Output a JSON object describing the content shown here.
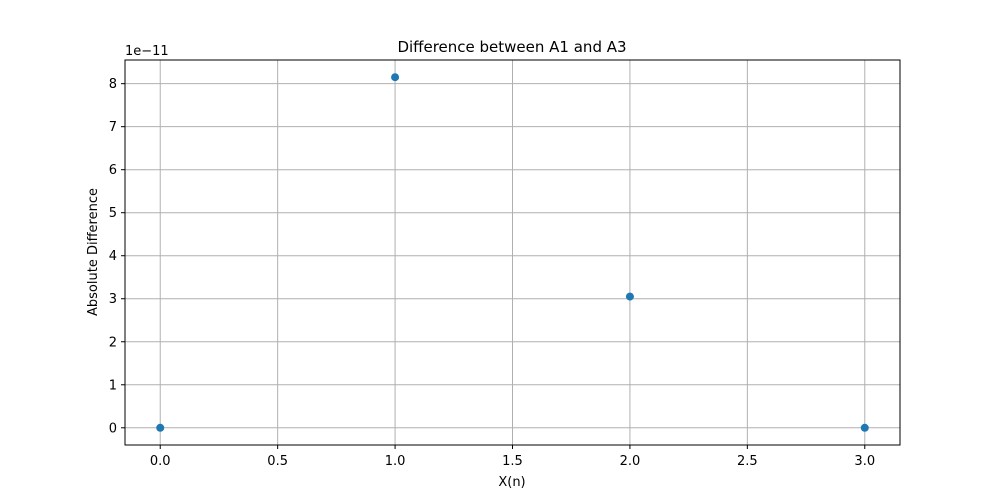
{
  "chart_data": {
    "type": "scatter",
    "title": "Difference between A1 and A3",
    "xlabel": "X(n)",
    "ylabel": "Absolute Difference",
    "y_scale_label": "1e−11",
    "x": [
      0.0,
      1.0,
      2.0,
      3.0
    ],
    "y": [
      0.0,
      8.15,
      3.05,
      0.0
    ],
    "xlim": [
      -0.15,
      3.15
    ],
    "ylim": [
      -0.4,
      8.55
    ],
    "xticks": [
      0.0,
      0.5,
      1.0,
      1.5,
      2.0,
      2.5,
      3.0
    ],
    "xtick_labels": [
      "0.0",
      "0.5",
      "1.0",
      "1.5",
      "2.0",
      "2.5",
      "3.0"
    ],
    "yticks": [
      0,
      1,
      2,
      3,
      4,
      5,
      6,
      7,
      8
    ],
    "ytick_labels": [
      "0",
      "1",
      "2",
      "3",
      "4",
      "5",
      "6",
      "7",
      "8"
    ],
    "grid": true,
    "marker_color": "#1f77b4",
    "grid_color": "#b0b0b0"
  }
}
